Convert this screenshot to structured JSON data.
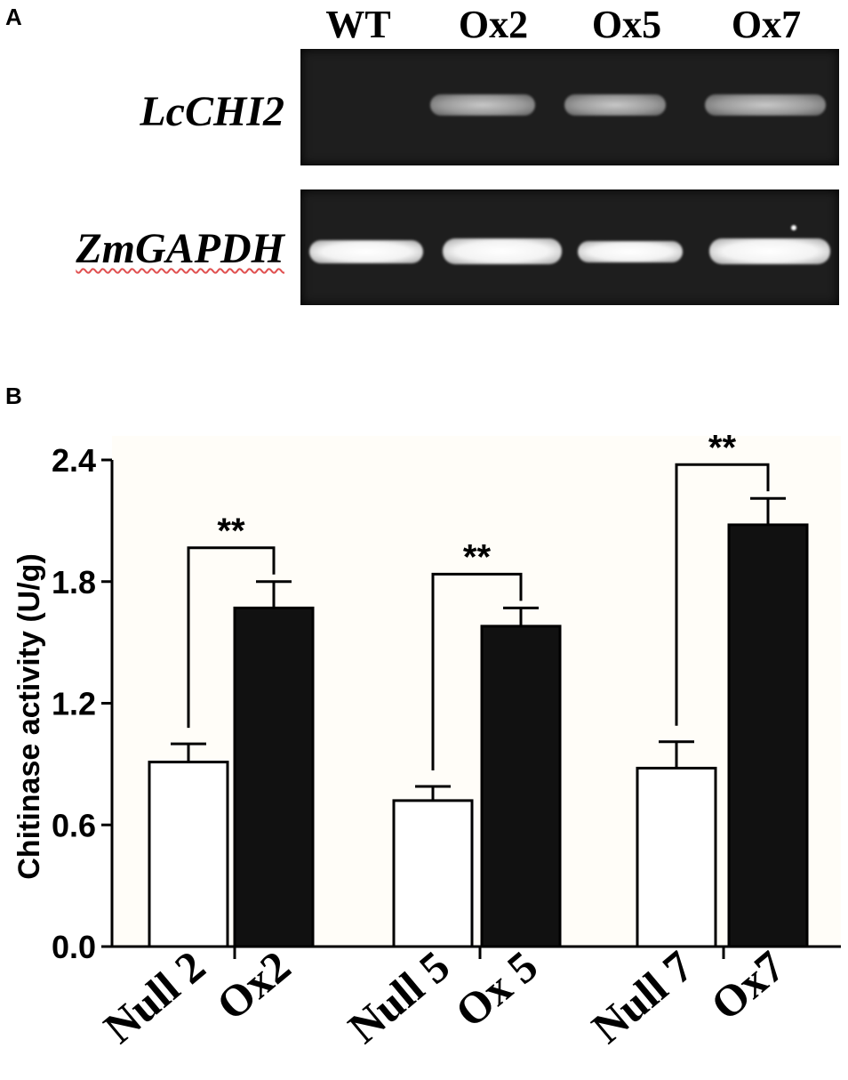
{
  "panel_a": {
    "letter": "A",
    "lanes": [
      "WT",
      "Ox2",
      "Ox5",
      "Ox7"
    ],
    "genes": [
      {
        "name": "LcCHI2",
        "band_intensity": [
          "none",
          "medium",
          "medium",
          "medium"
        ]
      },
      {
        "name": "ZmGAPDH",
        "band_intensity": [
          "strong",
          "strong",
          "strong",
          "strong"
        ]
      }
    ]
  },
  "panel_b": {
    "letter": "B"
  },
  "chart_data": {
    "type": "bar",
    "categories": [
      "Null 2",
      "Ox2",
      "Null 5",
      "Ox 5",
      "Null 7",
      "Ox7"
    ],
    "values": [
      0.91,
      1.67,
      0.72,
      1.58,
      0.88,
      2.08
    ],
    "errors": [
      0.09,
      0.13,
      0.07,
      0.09,
      0.13,
      0.13
    ],
    "bar_colors": [
      "#ffffff",
      "#111111",
      "#ffffff",
      "#111111",
      "#ffffff",
      "#111111"
    ],
    "ylabel": "Chitinase activity (U/g)",
    "xlabel": "",
    "ylim": [
      0,
      2.4
    ],
    "yticks": [
      "0.0",
      "0.6",
      "1.2",
      "1.8",
      "2.4"
    ],
    "significance": [
      {
        "from": "Null 2",
        "to": "Ox2",
        "label": "**"
      },
      {
        "from": "Null 5",
        "to": "Ox 5",
        "label": "**"
      },
      {
        "from": "Null 7",
        "to": "Ox7",
        "label": "**"
      }
    ],
    "grid": false
  }
}
